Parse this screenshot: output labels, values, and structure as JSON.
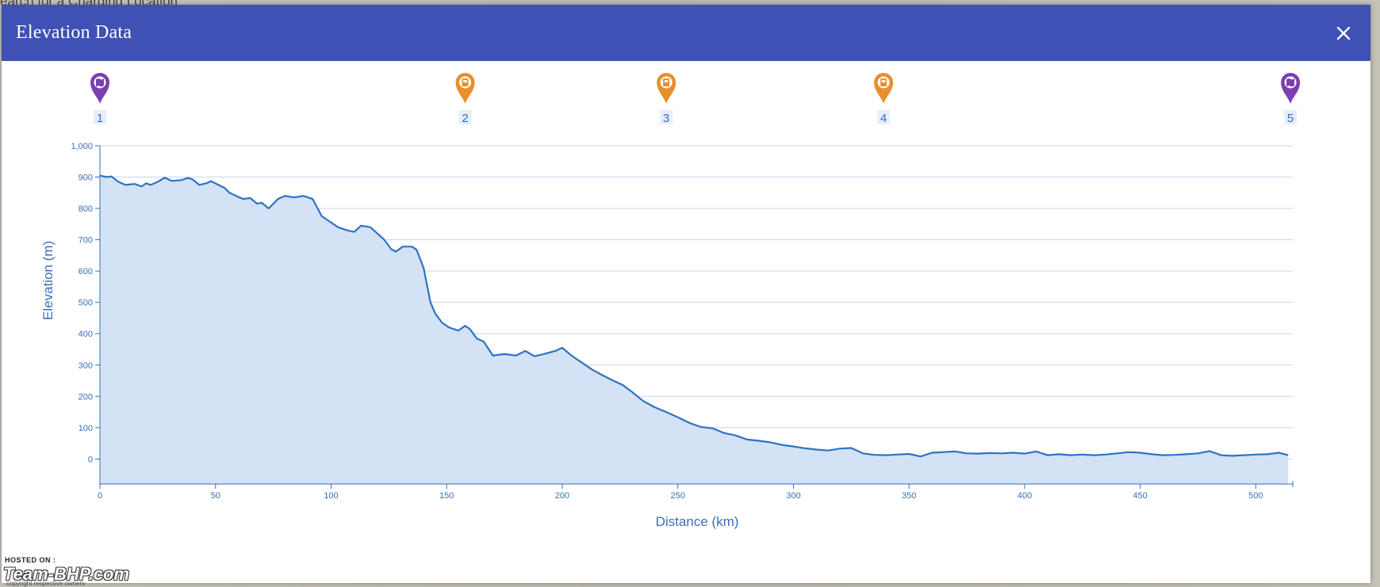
{
  "backdrop": {
    "search_text": "earch for a Charging Location"
  },
  "dialog": {
    "title": "Elevation Data",
    "close_label": "✕"
  },
  "markers": [
    {
      "label": "1",
      "km": 0,
      "type": "map",
      "icon": "map-pin-icon",
      "color": "#7b3fb0"
    },
    {
      "label": "2",
      "km": 158,
      "type": "charger",
      "icon": "ev-charger-pin-icon",
      "color": "#e6902c"
    },
    {
      "label": "3",
      "km": 245,
      "type": "charger",
      "icon": "ev-charger-pin-icon",
      "color": "#e6902c"
    },
    {
      "label": "4",
      "km": 339,
      "type": "charger",
      "icon": "ev-charger-pin-icon",
      "color": "#e6902c"
    },
    {
      "label": "5",
      "km": 515,
      "type": "map",
      "icon": "map-pin-icon",
      "color": "#7b3fb0"
    }
  ],
  "chart_data": {
    "type": "area",
    "xlabel": "Distance (km)",
    "ylabel": "Elevation (m)",
    "xlim": [
      0,
      516
    ],
    "ylim": [
      -80,
      1000
    ],
    "xticks": [
      0,
      50,
      100,
      150,
      200,
      250,
      300,
      350,
      400,
      450,
      500
    ],
    "xtick_labels": [
      "0",
      "50",
      "100",
      "150",
      "200",
      "250",
      "300",
      "350",
      "400",
      "450",
      "500"
    ],
    "yticks": [
      0,
      100,
      200,
      300,
      400,
      500,
      600,
      700,
      800,
      900,
      1000
    ],
    "ytick_labels": [
      "0",
      "100",
      "200",
      "300",
      "400",
      "500",
      "600",
      "700",
      "800",
      "900",
      "1,000"
    ],
    "grid": true,
    "line_color": "#2f72c4",
    "fill_color": "#d3e2f4",
    "x": [
      0,
      3,
      5,
      8,
      11,
      15,
      18,
      20,
      22,
      25,
      28,
      31,
      35,
      38,
      40,
      43,
      46,
      48,
      51,
      54,
      56,
      60,
      62,
      65,
      68,
      70,
      73,
      75,
      77,
      80,
      84,
      88,
      92,
      96,
      100,
      103,
      107,
      110,
      113,
      117,
      120,
      123,
      126,
      128,
      131,
      135,
      137,
      140,
      143,
      145,
      148,
      151,
      155,
      158,
      160,
      163,
      166,
      170,
      175,
      180,
      184,
      188,
      192,
      197,
      200,
      204,
      208,
      213,
      218,
      222,
      226,
      230,
      235,
      240,
      245,
      250,
      255,
      260,
      265,
      270,
      275,
      280,
      285,
      290,
      295,
      300,
      305,
      310,
      315,
      320,
      325,
      330,
      335,
      340,
      345,
      350,
      355,
      360,
      365,
      370,
      375,
      380,
      385,
      390,
      395,
      400,
      405,
      410,
      415,
      420,
      425,
      430,
      435,
      440,
      445,
      450,
      455,
      460,
      465,
      470,
      475,
      480,
      485,
      490,
      495,
      500,
      505,
      510,
      514
    ],
    "y": [
      905,
      900,
      902,
      885,
      875,
      878,
      870,
      880,
      875,
      885,
      898,
      888,
      890,
      897,
      893,
      875,
      880,
      887,
      876,
      865,
      850,
      836,
      830,
      833,
      815,
      818,
      800,
      815,
      830,
      840,
      835,
      840,
      830,
      775,
      755,
      740,
      730,
      725,
      745,
      740,
      720,
      700,
      670,
      662,
      678,
      678,
      668,
      610,
      500,
      465,
      435,
      420,
      410,
      425,
      415,
      385,
      375,
      330,
      335,
      330,
      345,
      328,
      335,
      345,
      355,
      330,
      310,
      285,
      265,
      250,
      237,
      215,
      185,
      165,
      150,
      133,
      115,
      102,
      98,
      83,
      75,
      62,
      58,
      53,
      45,
      40,
      34,
      30,
      27,
      33,
      35,
      18,
      13,
      12,
      14,
      16,
      8,
      20,
      22,
      24,
      18,
      17,
      19,
      18,
      20,
      17,
      24,
      12,
      15,
      12,
      14,
      12,
      14,
      18,
      22,
      20,
      15,
      12,
      13,
      15,
      18,
      25,
      12,
      10,
      12,
      14,
      15,
      20,
      12
    ]
  }
}
